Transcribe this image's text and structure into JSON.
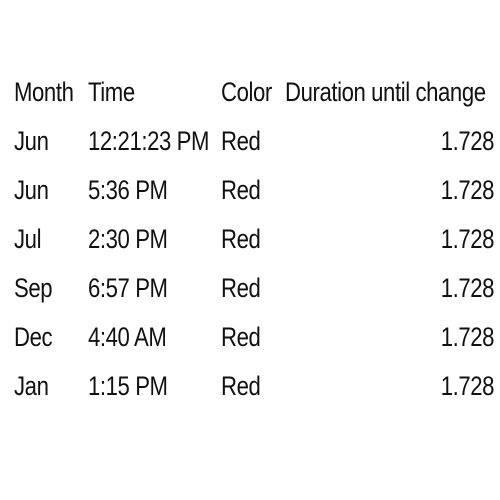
{
  "table": {
    "headers": [
      "Month",
      "Time",
      "Color",
      "Duration until change"
    ],
    "rows": [
      [
        "Jun",
        "12:21:23 PM",
        "Red",
        "1.728"
      ],
      [
        "Jun",
        "5:36 PM",
        "Red",
        "1.728"
      ],
      [
        "Jul",
        "2:30 PM",
        "Red",
        "1.728"
      ],
      [
        "Sep",
        "6:57 PM",
        "Red",
        "1.728"
      ],
      [
        "Dec",
        "4:40 AM",
        "Red",
        "1.728"
      ],
      [
        "Jan",
        "1:15 PM",
        "Red",
        "1.728"
      ]
    ]
  }
}
